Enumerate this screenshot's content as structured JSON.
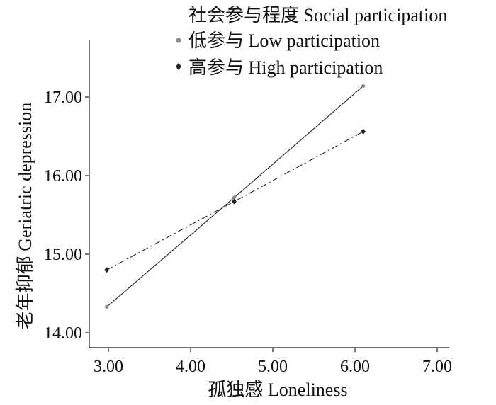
{
  "chart_data": {
    "type": "line",
    "title": "",
    "xlabel": "孤独感 Loneliness",
    "ylabel": "老年抑郁 Geriatric depression",
    "xlim": [
      2.75,
      7.2
    ],
    "ylim": [
      13.8,
      17.65
    ],
    "xticks": [
      3.0,
      4.0,
      5.0,
      6.0,
      7.0
    ],
    "xtick_labels": [
      "3.00",
      "4.00",
      "5.00",
      "6.00",
      "7.00"
    ],
    "yticks": [
      14.0,
      15.0,
      16.0,
      17.0
    ],
    "ytick_labels": [
      "14.00",
      "15.00",
      "16.00",
      "17.00"
    ],
    "grid": false,
    "legend_title": "社会参与程度 Social participation",
    "legend_position": "top-right",
    "series": [
      {
        "name": "低参与 Low participation",
        "marker": "circle",
        "line_style": "solid",
        "color": "#8a8a8a",
        "x": [
          2.98,
          4.53,
          6.1
        ],
        "y": [
          14.33,
          15.72,
          17.14
        ]
      },
      {
        "name": "高参与 High participation",
        "marker": "diamond",
        "line_style": "dash-dot",
        "color": "#222222",
        "x": [
          2.98,
          4.53,
          6.1
        ],
        "y": [
          14.8,
          15.67,
          16.56
        ]
      }
    ]
  }
}
